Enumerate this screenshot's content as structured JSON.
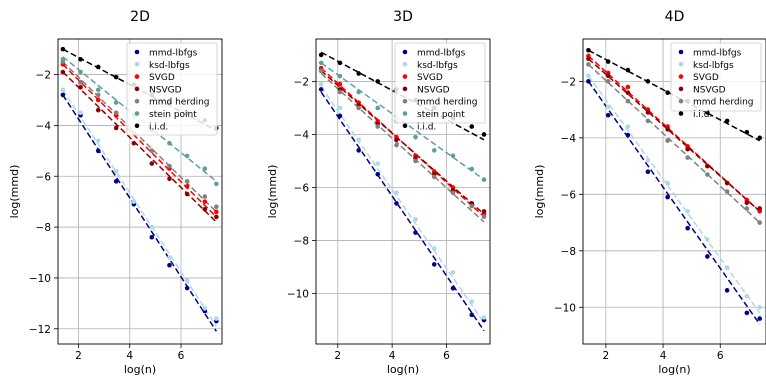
{
  "chart_data": [
    {
      "type": "scatter",
      "title": "2D",
      "xlabel": "log(n)",
      "ylabel": "log(mmd)",
      "xlim": [
        1.2,
        7.6
      ],
      "ylim": [
        -12.6,
        -0.6
      ],
      "xticks": [
        2,
        4,
        6
      ],
      "yticks": [
        -12,
        -10,
        -8,
        -6,
        -4,
        -2
      ],
      "grid": true,
      "legend": "top-right",
      "x": [
        1.39,
        2.08,
        2.77,
        3.47,
        4.16,
        4.86,
        5.55,
        6.24,
        6.93,
        7.38
      ],
      "series": [
        {
          "name": "mmd-lbfgs",
          "color": "#00008b",
          "values": [
            -2.8,
            -3.6,
            -5.0,
            -6.2,
            -7.1,
            -8.4,
            -9.5,
            -10.4,
            -11.3,
            -11.7
          ],
          "fit": [
            -2.8,
            -12.1
          ]
        },
        {
          "name": "ksd-lbfgs",
          "color": "#add8e6",
          "values": [
            -2.6,
            -3.5,
            -4.6,
            -5.8,
            -7.0,
            -8.0,
            -9.2,
            -10.1,
            -11.2,
            -11.6
          ],
          "fit": [
            -2.6,
            -11.9
          ]
        },
        {
          "name": "SVGD",
          "color": "#ff0000",
          "values": [
            -1.6,
            -2.3,
            -3.0,
            -3.6,
            -4.3,
            -5.0,
            -5.7,
            -6.4,
            -7.0,
            -7.4
          ],
          "fit": [
            -1.6,
            -7.6
          ]
        },
        {
          "name": "NSVGD",
          "color": "#8b0000",
          "values": [
            -1.9,
            -2.5,
            -3.4,
            -4.1,
            -4.7,
            -5.5,
            -6.1,
            -6.7,
            -7.3,
            -7.6
          ],
          "fit": [
            -1.9,
            -7.8
          ]
        },
        {
          "name": "mmd herding",
          "color": "#808080",
          "values": [
            -1.5,
            -2.3,
            -2.8,
            -3.5,
            -4.3,
            -5.0,
            -5.6,
            -6.2,
            -6.8,
            -7.2
          ],
          "fit": [
            -1.5,
            -7.4
          ]
        },
        {
          "name": "stein point",
          "color": "#5f9ea0",
          "values": [
            -1.4,
            -1.9,
            -2.6,
            -3.1,
            -3.6,
            -4.2,
            -4.7,
            -5.2,
            -5.7,
            -6.3
          ],
          "fit": [
            -1.3,
            -6.2
          ]
        },
        {
          "name": "i.i.d.",
          "color": "#000000",
          "values": [
            -1.0,
            -1.4,
            -1.7,
            -2.1,
            -2.4,
            -2.8,
            -3.1,
            -3.5,
            -3.8,
            -4.1
          ],
          "fit": [
            -1.0,
            -4.2
          ]
        }
      ]
    },
    {
      "type": "scatter",
      "title": "3D",
      "xlabel": "log(n)",
      "ylabel": "log(mmd)",
      "xlim": [
        1.2,
        7.6
      ],
      "ylim": [
        -11.9,
        -0.4
      ],
      "xticks": [
        2,
        4,
        6
      ],
      "yticks": [
        -10,
        -8,
        -6,
        -4,
        -2
      ],
      "grid": true,
      "legend": "top-right",
      "x": [
        1.39,
        2.08,
        2.77,
        3.47,
        4.16,
        4.86,
        5.55,
        6.24,
        6.93,
        7.38
      ],
      "series": [
        {
          "name": "mmd-lbfgs",
          "color": "#00008b",
          "values": [
            -2.3,
            -3.3,
            -4.6,
            -5.5,
            -6.6,
            -7.7,
            -8.9,
            -9.8,
            -10.8,
            -11.0
          ],
          "fit": [
            -2.4,
            -11.4
          ]
        },
        {
          "name": "ksd-lbfgs",
          "color": "#add8e6",
          "values": [
            -2.1,
            -3.0,
            -4.2,
            -5.1,
            -6.2,
            -7.2,
            -8.3,
            -9.2,
            -10.3,
            -10.9
          ],
          "fit": [
            -2.2,
            -11.1
          ]
        },
        {
          "name": "SVGD",
          "color": "#ff0000",
          "values": [
            -1.5,
            -2.1,
            -2.8,
            -3.5,
            -4.1,
            -4.8,
            -5.4,
            -6.0,
            -6.6,
            -7.0
          ],
          "fit": [
            -1.5,
            -7.1
          ]
        },
        {
          "name": "NSVGD",
          "color": "#8b0000",
          "values": [
            -1.6,
            -2.3,
            -2.9,
            -3.6,
            -4.2,
            -4.9,
            -5.5,
            -6.1,
            -6.6,
            -6.9
          ],
          "fit": [
            -1.6,
            -7.0
          ]
        },
        {
          "name": "mmd herding",
          "color": "#808080",
          "values": [
            -1.6,
            -2.4,
            -3.0,
            -3.7,
            -4.4,
            -5.0,
            -5.6,
            -6.2,
            -6.7,
            -7.1
          ],
          "fit": [
            -1.7,
            -7.3
          ]
        },
        {
          "name": "stein point",
          "color": "#5f9ea0",
          "values": [
            -1.3,
            -1.8,
            -2.4,
            -3.0,
            -3.5,
            -4.1,
            -4.6,
            -4.8,
            -5.3,
            -5.7
          ],
          "fit": [
            -1.3,
            -5.7
          ]
        },
        {
          "name": "i.i.d.",
          "color": "#000000",
          "values": [
            -1.0,
            -1.3,
            -1.7,
            -2.0,
            -2.3,
            -2.7,
            -3.0,
            -3.4,
            -3.7,
            -4.0
          ],
          "fit": [
            -0.9,
            -4.2
          ]
        }
      ]
    },
    {
      "type": "scatter",
      "title": "4D",
      "xlabel": "log(n)",
      "ylabel": "log(mmd)",
      "xlim": [
        1.2,
        7.6
      ],
      "ylim": [
        -11.3,
        -0.5
      ],
      "xticks": [
        2,
        4,
        6
      ],
      "yticks": [
        -10,
        -8,
        -6,
        -4,
        -2
      ],
      "grid": true,
      "legend": "top-right",
      "x": [
        1.39,
        2.08,
        2.77,
        3.47,
        4.16,
        4.86,
        5.55,
        6.24,
        6.93,
        7.38
      ],
      "series": [
        {
          "name": "mmd-lbfgs",
          "color": "#00008b",
          "values": [
            -2.0,
            -3.2,
            -3.9,
            -5.2,
            -6.1,
            -7.2,
            -8.2,
            -9.4,
            -10.2,
            -10.4
          ],
          "fit": [
            -2.0,
            -10.6
          ]
        },
        {
          "name": "ksd-lbfgs",
          "color": "#add8e6",
          "values": [
            -1.8,
            -2.9,
            -3.6,
            -4.8,
            -5.6,
            -6.6,
            -7.6,
            -8.6,
            -9.6,
            -10.0
          ],
          "fit": [
            -1.8,
            -10.2
          ]
        },
        {
          "name": "SVGD",
          "color": "#ff0000",
          "values": [
            -1.1,
            -1.7,
            -2.2,
            -3.0,
            -3.6,
            -4.3,
            -5.0,
            -5.6,
            -6.2,
            -6.6
          ],
          "fit": [
            -1.1,
            -6.6
          ]
        },
        {
          "name": "NSVGD",
          "color": "#8b0000",
          "values": [
            -1.2,
            -1.8,
            -2.4,
            -3.1,
            -3.7,
            -4.4,
            -5.0,
            -5.6,
            -6.3,
            -6.5
          ],
          "fit": [
            -1.2,
            -6.6
          ]
        },
        {
          "name": "mmd herding",
          "color": "#808080",
          "values": [
            -1.4,
            -2.0,
            -2.7,
            -3.4,
            -4.1,
            -4.7,
            -5.3,
            -5.9,
            -6.5,
            -7.0
          ],
          "fit": [
            -1.4,
            -7.0
          ]
        },
        {
          "name": "i.i.d.",
          "color": "#000000",
          "values": [
            -0.9,
            -1.3,
            -1.6,
            -2.0,
            -2.4,
            -2.7,
            -3.1,
            -3.4,
            -3.8,
            -4.0
          ],
          "fit": [
            -0.9,
            -4.1
          ]
        }
      ]
    }
  ]
}
